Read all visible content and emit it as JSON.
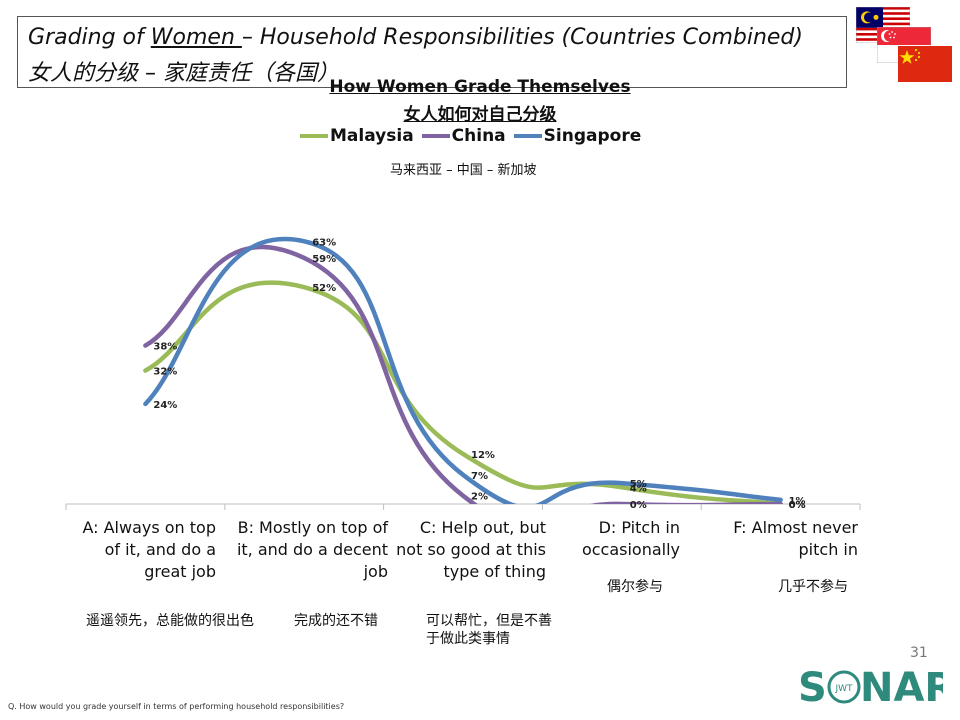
{
  "slide": {
    "title_prefix": "Grading of ",
    "title_underlined": "Women ",
    "title_suffix": "– Household Responsibilities (Countries Combined)",
    "title_cn": "女人的分级 – 家庭责任（各国）",
    "page_number": "31",
    "footnote": "Q. How would you grade yourself in terms of performing household responsibilities?",
    "logo_text_left": "S",
    "logo_text_right": "NAR",
    "logo_small": "JWT",
    "flags": [
      "malaysia-flag",
      "singapore-flag",
      "china-flag"
    ]
  },
  "colors": {
    "malaysia": "#9bbb59",
    "china": "#8064a2",
    "singapore": "#4f81bd",
    "axis": "#bfbfbf"
  },
  "chart_data": {
    "type": "line",
    "title": "How Women Grade Themselves",
    "title_cn": "女人如何对自己分级",
    "legend_cn": "马来西亚 – 中国 – 新加坡",
    "categories": [
      "A: Always on top\nof it, and do a\ngreat job",
      "B: Mostly on top of\nit, and do a decent\njob",
      "C: Help out, but\nnot so good at this\ntype of thing",
      "D: Pitch in\noccasionally",
      "F: Almost never\npitch in"
    ],
    "categories_cn": [
      "遥遥领先，总能做的很出色",
      "完成的还不错",
      "可以帮忙，但是不善\n于做此类事情",
      "偶尔参与",
      "几乎不参与"
    ],
    "series": [
      {
        "name": "Malaysia",
        "key": "malaysia",
        "values": [
          32,
          52,
          12,
          4,
          0
        ],
        "labels": [
          "32%",
          "52%",
          "12%",
          "4%",
          "0%"
        ]
      },
      {
        "name": "China",
        "key": "china",
        "values": [
          38,
          59,
          2,
          0,
          0
        ],
        "labels": [
          "38%",
          "59%",
          "2%",
          "0%",
          "0%"
        ]
      },
      {
        "name": "Singapore",
        "key": "singapore",
        "values": [
          24,
          63,
          7,
          5,
          1
        ],
        "labels": [
          "24%",
          "63%",
          "7%",
          "5%",
          "1%"
        ]
      }
    ],
    "ylim": [
      0,
      100
    ],
    "smooth": true
  }
}
